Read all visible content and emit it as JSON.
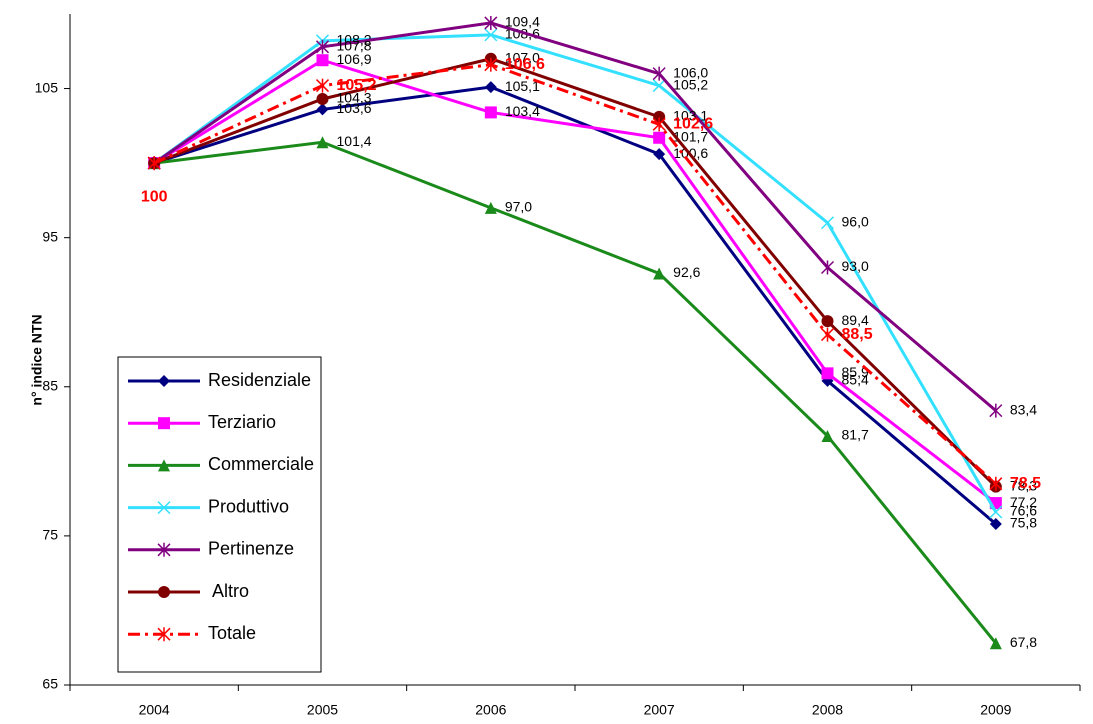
{
  "chart_data": {
    "type": "line",
    "y_label": "n° indice NTN",
    "categories": [
      "2004",
      "2005",
      "2006",
      "2007",
      "2008",
      "2009"
    ],
    "ylim": [
      65,
      110
    ],
    "yticks": [
      65,
      75,
      85,
      95,
      105
    ],
    "legend": "bottom-left",
    "series": [
      {
        "name": "Residenziale",
        "color": "#000080",
        "marker": "diamond",
        "values": [
          100,
          103.6,
          105.1,
          100.6,
          85.4,
          75.8
        ],
        "value_labels": [
          null,
          "103,6",
          "105,1",
          "100,6",
          "85,4",
          "75,8"
        ]
      },
      {
        "name": "Terziario",
        "color": "#ff00ff",
        "marker": "square",
        "values": [
          100,
          106.9,
          103.4,
          101.7,
          85.9,
          77.2
        ],
        "value_labels": [
          null,
          "106,9",
          "103,4",
          "101,7",
          "85,9",
          "77,2"
        ]
      },
      {
        "name": "Commerciale",
        "color": "#1a8a1a",
        "marker": "triangle",
        "values": [
          100,
          101.4,
          97.0,
          92.6,
          81.7,
          67.8
        ],
        "value_labels": [
          null,
          "101,4",
          "97,0",
          "92,6",
          "81,7",
          "67,8"
        ]
      },
      {
        "name": "Produttivo",
        "color": "#33e0ff",
        "marker": "x",
        "values": [
          100,
          108.2,
          108.6,
          105.2,
          96.0,
          76.6
        ],
        "value_labels": [
          null,
          "108,2",
          "108,6",
          "105,2",
          "96,0",
          "76,6"
        ]
      },
      {
        "name": "Pertinenze",
        "color": "#800080",
        "marker": "star",
        "values": [
          100,
          107.8,
          109.4,
          106.0,
          93.0,
          83.4
        ],
        "value_labels": [
          null,
          "107,8",
          "109,4",
          "106,0",
          "93,0",
          "83,4"
        ]
      },
      {
        "name": " Altro",
        "color": "#800000",
        "marker": "circle",
        "values": [
          100,
          104.3,
          107.0,
          103.1,
          89.4,
          78.3
        ],
        "value_labels": [
          null,
          "104,3",
          "107,0",
          "103,1",
          "89,4",
          "78,3"
        ]
      },
      {
        "name": "Totale",
        "color": "#ff0000",
        "marker": "star",
        "dashed": true,
        "label_style": "bold",
        "values": [
          100,
          105.2,
          106.6,
          102.6,
          88.5,
          78.5
        ],
        "value_labels": [
          "100",
          "105,2",
          "106,6",
          "102,6",
          "88,5",
          "78,5"
        ]
      }
    ]
  }
}
